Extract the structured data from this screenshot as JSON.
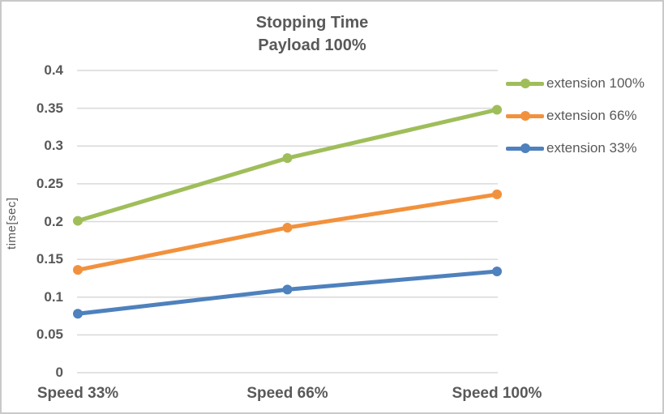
{
  "chart_data": {
    "type": "line",
    "title": "Stopping Time Payload 100%",
    "title_lines": [
      "Stopping Time",
      "Payload 100%"
    ],
    "categories": [
      "Speed 33%",
      "Speed 66%",
      "Speed 100%"
    ],
    "series": [
      {
        "name": "extension 100%",
        "color": "#9FBE5A",
        "values": [
          0.201,
          0.284,
          0.348
        ]
      },
      {
        "name": "extension 66%",
        "color": "#F2913D",
        "values": [
          0.136,
          0.192,
          0.236
        ]
      },
      {
        "name": "extension 33%",
        "color": "#4E81BD",
        "values": [
          0.078,
          0.11,
          0.134
        ]
      }
    ],
    "xlabel": "",
    "ylabel": "time[sec]",
    "ylim": [
      0,
      0.4
    ],
    "ytick_step": 0.05,
    "yticks": [
      "0",
      "0.05",
      "0.1",
      "0.15",
      "0.2",
      "0.25",
      "0.3",
      "0.35",
      "0.4"
    ],
    "grid": true,
    "legend_position": "right"
  },
  "colors": {
    "text": "#595959",
    "gridline": "#d9d9d9",
    "frame_border": "#c9c9c9",
    "background": "#ffffff"
  }
}
